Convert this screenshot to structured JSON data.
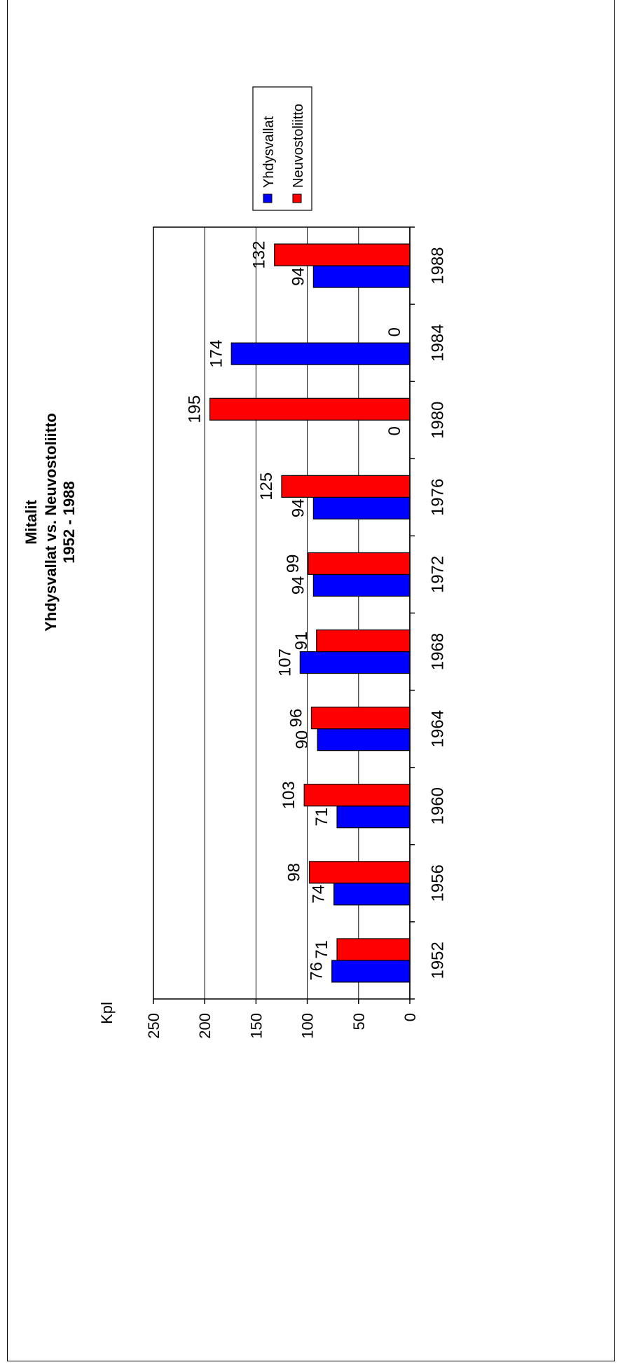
{
  "chart_data": {
    "type": "bar",
    "orientation": "rotated-90-ccw",
    "title": "Mitalit",
    "subtitle_lines": [
      "Yhdysvallat  vs.  Neuvostoliitto",
      "1952 - 1988"
    ],
    "ylabel": "Kpl",
    "ylim": [
      0,
      250
    ],
    "yticks": [
      "0",
      "50",
      "100",
      "150",
      "200",
      "250"
    ],
    "grid": true,
    "legend_position": "top-right",
    "categories": [
      "1952",
      "1956",
      "1960",
      "1964",
      "1968",
      "1972",
      "1976",
      "1980",
      "1984",
      "1988"
    ],
    "series": [
      {
        "name": "Yhdysvallat",
        "color": "#0000ff",
        "values": [
          76,
          74,
          71,
          90,
          107,
          94,
          94,
          0,
          174,
          94
        ]
      },
      {
        "name": "Neuvostoliitto",
        "color": "#ff0000",
        "values": [
          71,
          98,
          103,
          96,
          91,
          99,
          125,
          195,
          0,
          132
        ]
      }
    ]
  }
}
